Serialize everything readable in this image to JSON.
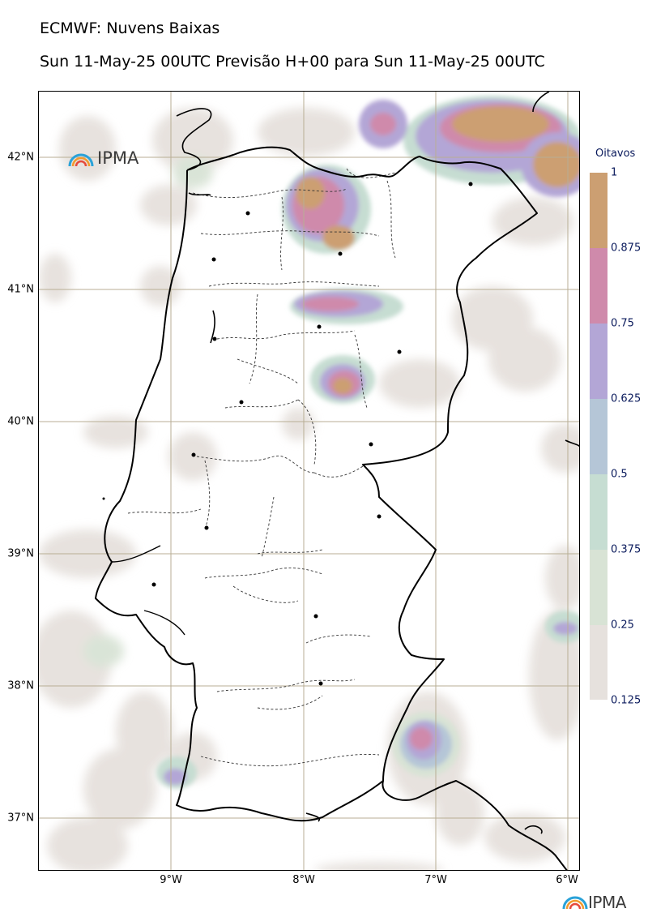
{
  "titles": {
    "line1": "ECMWF: Nuvens Baixas",
    "line2": "Sun 11-May-25 00UTC Previsão H+00 para Sun 11-May-25 00UTC"
  },
  "logos": {
    "map_logo": "IPMA",
    "footer_logo": "IPMA"
  },
  "axes": {
    "lat_ticks": [
      "42°N",
      "41°N",
      "40°N",
      "39°N",
      "38°N",
      "37°N"
    ],
    "lon_ticks": [
      "9°W",
      "8°W",
      "7°W",
      "6°W"
    ]
  },
  "colorbar": {
    "title": "Oitavos",
    "ticks": [
      "1",
      "0.875",
      "0.75",
      "0.625",
      "0.5",
      "0.375",
      "0.25",
      "0.125"
    ],
    "colors": [
      "#cc9f72",
      "#cf8aab",
      "#b3a6d6",
      "#b5c6d7",
      "#c6ddd2",
      "#d8e3d5",
      "#e6e1dd"
    ]
  },
  "colors": {
    "gridline": "#b8ae94",
    "coast": "#000000"
  }
}
